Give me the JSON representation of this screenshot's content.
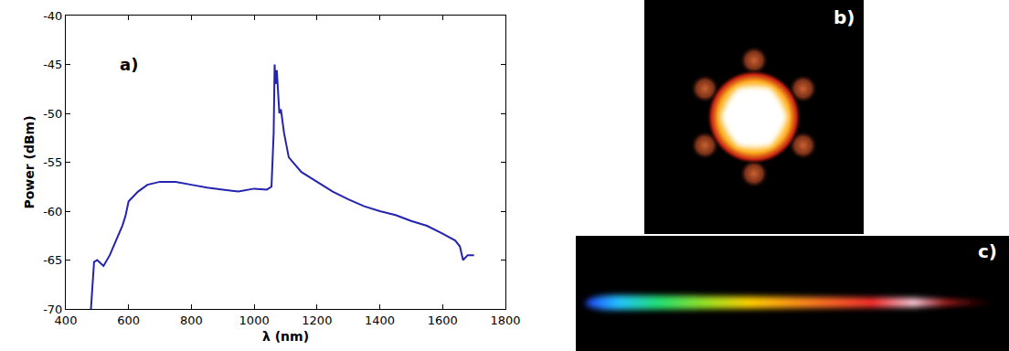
{
  "chart_data": {
    "type": "line",
    "x": [
      480,
      490,
      500,
      510,
      520,
      540,
      560,
      580,
      590,
      600,
      630,
      660,
      700,
      750,
      800,
      850,
      900,
      950,
      1000,
      1040,
      1055,
      1062,
      1065,
      1068,
      1072,
      1076,
      1080,
      1085,
      1095,
      1110,
      1150,
      1200,
      1250,
      1300,
      1350,
      1400,
      1450,
      1500,
      1550,
      1600,
      1640,
      1655,
      1665,
      1680,
      1700
    ],
    "values": [
      -70,
      -65.2,
      -65,
      -65.3,
      -65.6,
      -64.5,
      -63,
      -61.5,
      -60.5,
      -59,
      -58,
      -57.3,
      -57,
      -57,
      -57.3,
      -57.6,
      -57.8,
      -58,
      -57.7,
      -57.8,
      -57.5,
      -52,
      -45,
      -47,
      -45.6,
      -48.5,
      -50,
      -49.6,
      -52,
      -54.5,
      -56,
      -57,
      -58,
      -58.8,
      -59.5,
      -60,
      -60.4,
      -61,
      -61.5,
      -62.3,
      -63,
      -63.6,
      -65,
      -64.5,
      -64.5
    ],
    "color": "#2323b0",
    "xlabel": "λ (nm)",
    "ylabel": "Power (dBm)",
    "xlim": [
      400,
      1800
    ],
    "xticks": [
      400,
      600,
      800,
      1000,
      1200,
      1400,
      1600,
      1800
    ],
    "ylim": [
      -70,
      -40
    ],
    "yticks": [
      -70,
      -65,
      -60,
      -55,
      -50,
      -45,
      -40
    ],
    "grid": false,
    "annotations": [
      {
        "text": "a)",
        "x": 600,
        "y": -45
      }
    ]
  },
  "images": [
    {
      "label": "b)"
    },
    {
      "label": "c)"
    }
  ]
}
